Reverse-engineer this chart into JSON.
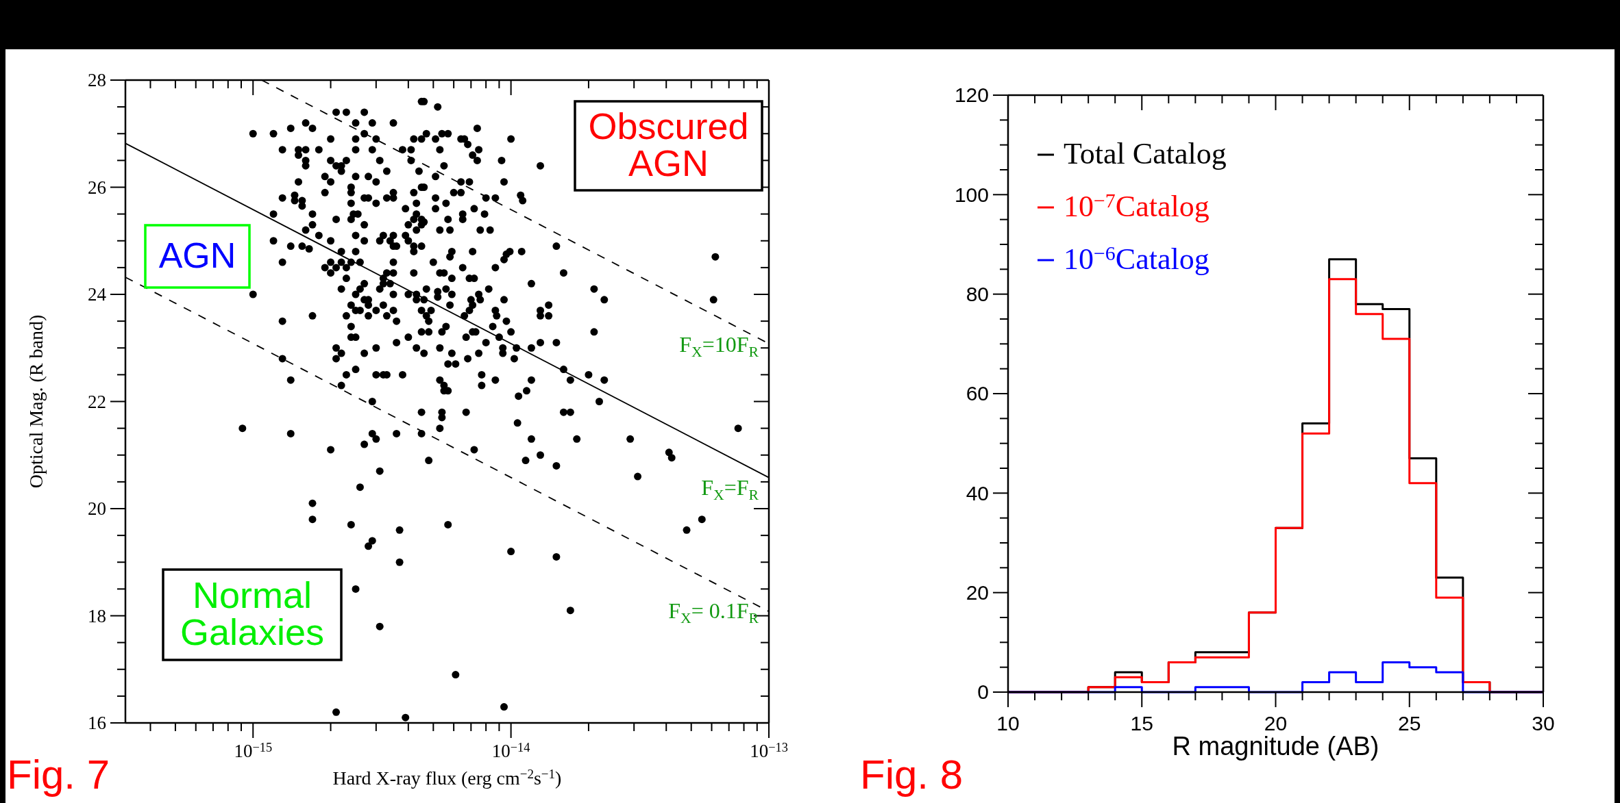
{
  "chart_data": [
    {
      "type": "scatter",
      "xlabel": "Hard X-ray flux (erg cm$^{−2}$s$^{−1}$)",
      "ylabel": "Optical Mag. (R band)",
      "log": "x",
      "xlim": [
        3.2e-16,
        1e-13
      ],
      "ylim": [
        16,
        28
      ],
      "xticks": [
        {
          "value": 4e-16,
          "label": null
        },
        {
          "value": 5e-16,
          "label": null
        },
        {
          "value": 6e-16,
          "label": null
        },
        {
          "value": 7e-16,
          "label": null
        },
        {
          "value": 8e-16,
          "label": null
        },
        {
          "value": 9e-16,
          "label": null
        },
        {
          "value": 1e-15,
          "label": "10$^{−15}$"
        },
        {
          "value": 2e-15,
          "label": null
        },
        {
          "value": 3e-15,
          "label": null
        },
        {
          "value": 4e-15,
          "label": null
        },
        {
          "value": 5e-15,
          "label": null
        },
        {
          "value": 6e-15,
          "label": null
        },
        {
          "value": 7e-15,
          "label": null
        },
        {
          "value": 8e-15,
          "label": null
        },
        {
          "value": 9e-15,
          "label": null
        },
        {
          "value": 1e-14,
          "label": "10$^{−14}$"
        },
        {
          "value": 2e-14,
          "label": null
        },
        {
          "value": 3e-14,
          "label": null
        },
        {
          "value": 4e-14,
          "label": null
        },
        {
          "value": 5e-14,
          "label": null
        },
        {
          "value": 6e-14,
          "label": null
        },
        {
          "value": 7e-14,
          "label": null
        },
        {
          "value": 8e-14,
          "label": null
        },
        {
          "value": 9e-14,
          "label": null
        },
        {
          "value": 1e-13,
          "label": "10$^{−13}$"
        }
      ],
      "yticks": [
        16,
        {
          "value": 16.5,
          "label": null
        },
        {
          "value": 17,
          "label": null
        },
        {
          "value": 17.5,
          "label": null
        },
        18,
        {
          "value": 18.5,
          "label": null
        },
        {
          "value": 19,
          "label": null
        },
        {
          "value": 19.5,
          "label": null
        },
        20,
        {
          "value": 20.5,
          "label": null
        },
        {
          "value": 21,
          "label": null
        },
        {
          "value": 21.5,
          "label": null
        },
        22,
        {
          "value": 22.5,
          "label": null
        },
        {
          "value": 23,
          "label": null
        },
        {
          "value": 23.5,
          "label": null
        },
        24,
        {
          "value": 24.5,
          "label": null
        },
        {
          "value": 25,
          "label": null
        },
        {
          "value": 25.5,
          "label": null
        },
        26,
        {
          "value": 26.5,
          "label": null
        },
        {
          "value": 27,
          "label": null
        },
        {
          "value": 27.5,
          "label": null
        },
        28
      ],
      "series": [
        {
          "type": "scatter",
          "color": "#000000",
          "marker": "circle",
          "x": [
            4.5e-15,
            4.6e-15,
            5.2e-15,
            2.1e-15,
            2.3e-15,
            2.7e-15,
            2.9e-15,
            2.5e-15,
            3.5e-15,
            1.6e-15,
            1.7e-15,
            1.4e-15,
            1e-15,
            1.2e-15,
            2.7e-15,
            3e-15,
            2.5e-15,
            2e-15,
            4.2e-15,
            4.5e-15,
            4.7e-15,
            5.1e-15,
            5.4e-15,
            5.7e-15,
            1.3e-15,
            1.5e-15,
            1.6e-15,
            1.5e-15,
            1.8e-15,
            2.5e-15,
            2.9e-15,
            3.8e-15,
            4.1e-15,
            5.3e-15,
            2e-15,
            2.3e-15,
            1.6e-15,
            1.6e-15,
            2.1e-15,
            2.2e-15,
            2.2e-15,
            3.1e-15,
            3.3e-15,
            4.1e-15,
            4.4e-15,
            5.5e-15,
            5.1e-15,
            1.9e-15,
            2e-15,
            2.5e-15,
            2.8e-15,
            3e-15,
            1.5e-15,
            2.4e-15,
            2.4e-15,
            4.5e-15,
            4.6e-15,
            4.2e-15,
            3.5e-15,
            3.5e-15,
            6e-15,
            1.3e-15,
            1.45e-15,
            1.45e-15,
            1.55e-15,
            1.55e-15,
            1.9e-15,
            2.4e-15,
            2.7e-15,
            2.8e-15,
            3e-15,
            3.3e-15,
            4.3e-15,
            5.1e-15,
            5.6e-15,
            3.9e-15,
            5.1e-15,
            1.2e-15,
            1.7e-15,
            2.1e-15,
            2.4e-15,
            2.45e-15,
            2.55e-15,
            4.3e-15,
            4.5e-15,
            4.6e-15,
            4e-15,
            4.2e-15,
            4.5e-15,
            4.3e-15,
            5.7e-15,
            1.6e-15,
            1.7e-15,
            1.8e-15,
            2.5e-15,
            2.7e-15,
            3.2e-15,
            3.5e-15,
            3.9e-15,
            4e-15,
            5.3e-15,
            5.8e-15,
            1.2e-15,
            1.4e-15,
            1.55e-15,
            1.65e-15,
            2e-15,
            2.2e-15,
            2.7e-15,
            3.1e-15,
            3.4e-15,
            3.5e-15,
            3.6e-15,
            4.2e-15,
            4.2e-15,
            4.5e-15,
            5.9e-15,
            5.8e-15,
            1.3e-15,
            1.9e-15,
            2e-15,
            2.1e-15,
            2.2e-15,
            2.3e-15,
            2.4e-15,
            2.6e-15,
            2.5e-15,
            3.5e-15,
            5e-15,
            4.2e-15,
            2e-15,
            2.3e-15,
            2.2e-15,
            2.5e-15,
            2.6e-15,
            2.7e-15,
            3.2e-15,
            3.3e-15,
            3.5e-15,
            3.2e-15,
            3.4e-15,
            3.1e-15,
            3.5e-15,
            4e-15,
            4.3e-15,
            4.3e-15,
            4.6e-15,
            4.7e-15,
            5.2e-15,
            5.2e-15,
            5.3e-15,
            5.5e-15,
            5.9e-15,
            5.6e-15,
            5.9e-15,
            5.8e-15,
            1e-15,
            1.7e-15,
            1.3e-15,
            2.3e-15,
            2.4e-15,
            2.5e-15,
            2.6e-15,
            2.7e-15,
            2.8e-15,
            2.8e-15,
            3e-15,
            2.8e-15,
            3.2e-15,
            3.3e-15,
            3.5e-15,
            3.6e-15,
            4.5e-15,
            4.7e-15,
            4.9e-15,
            4.8e-15,
            4.8e-15,
            4.5e-15,
            5.6e-15,
            5.4e-15,
            2.4e-15,
            2.5e-15,
            2.4e-15,
            4e-15,
            3.6e-15,
            4.3e-15,
            2.1e-15,
            2.2e-15,
            2.1e-15,
            2.7e-15,
            3e-15,
            5.3e-15,
            5.9e-15,
            4.6e-15,
            5.7e-15,
            6.1e-15,
            1.3e-15,
            1.4e-15,
            2.5e-15,
            2.3e-15,
            2.2e-15,
            3e-15,
            3.2e-15,
            3.3e-15,
            3.8e-15,
            5.3e-15,
            5.5e-15,
            5.5e-15,
            5.7e-15,
            2.9e-15,
            4.5e-15,
            5.4e-15,
            5.4e-15,
            4.5e-15,
            5.3e-15,
            2.9e-15,
            3e-15,
            2.7e-15,
            3.6e-15,
            9.1e-16,
            1.4e-15,
            2e-15,
            4.8e-15,
            3.1e-15,
            2.6e-15,
            1.7e-15,
            1.7e-15,
            2.4e-15,
            3.7e-15,
            2.9e-15,
            2.8e-15,
            3.7e-15,
            5.7e-15,
            2.5e-15,
            3.1e-15,
            6.1e-15,
            2.1e-15,
            3.9e-15,
            7.4e-15,
            6.4e-15,
            6.6e-15,
            6.8e-15,
            1e-14,
            7.1e-15,
            7.5e-15,
            7.4e-15,
            9.2e-15,
            1.3e-14,
            6.4e-15,
            6.9e-15,
            9.4e-15,
            6.4e-15,
            8e-15,
            8.7e-15,
            1.09e-14,
            1.11e-14,
            7.2e-15,
            6.5e-15,
            6.5e-15,
            7.9e-15,
            7.6e-15,
            8.3e-15,
            1.5e-14,
            7.1e-15,
            1.1e-14,
            9.4e-15,
            9.9e-15,
            9.6e-15,
            6.5e-15,
            8.7e-15,
            1.6e-14,
            6.2e-14,
            6.9e-15,
            7.2e-15,
            1.2e-14,
            2.1e-14,
            2.3e-14,
            6.1e-14,
            7.5e-15,
            7.6e-15,
            8.2e-15,
            9.4e-15,
            7e-15,
            7.1e-15,
            6.9e-15,
            8.7e-15,
            8.8e-15,
            6.6e-15,
            9.6e-15,
            1.3e-14,
            1.4e-14,
            1.3e-14,
            1.4e-14,
            8.5e-15,
            6.7e-15,
            7.1e-15,
            7.3e-15,
            9e-15,
            1e-14,
            8e-15,
            2.1e-14,
            6.8e-15,
            7.5e-15,
            9.3e-15,
            9.3e-15,
            1.03e-14,
            1.05e-14,
            1.2e-14,
            1.3e-14,
            1.5e-14,
            7.7e-15,
            7.7e-15,
            8.7e-15,
            1.2e-14,
            1.15e-14,
            1.07e-14,
            1.6e-14,
            1.7e-14,
            2e-14,
            2.3e-14,
            2.2e-14,
            6.7e-15,
            1.06e-14,
            1.2e-14,
            1.14e-14,
            1.3e-14,
            7.2e-15,
            1.5e-14,
            1.6e-14,
            1.7e-14,
            1.8e-14,
            2.9e-14,
            3.1e-14,
            4.1e-14,
            4.2e-14,
            7.6e-14,
            5.5e-14,
            4.8e-14,
            1e-14,
            1.5e-14,
            1.7e-14,
            9.4e-15
          ],
          "values": [
            27.6,
            27.6,
            27.5,
            27.4,
            27.4,
            27.4,
            27.2,
            27.2,
            27.2,
            27.2,
            27.1,
            27.1,
            27.0,
            27.0,
            27.0,
            26.9,
            26.9,
            26.9,
            26.9,
            26.9,
            27.0,
            26.9,
            27.0,
            27.0,
            26.7,
            26.7,
            26.7,
            26.6,
            26.7,
            26.7,
            26.7,
            26.7,
            26.7,
            26.7,
            26.5,
            26.5,
            26.5,
            26.4,
            26.4,
            26.4,
            26.3,
            26.5,
            26.3,
            26.5,
            26.3,
            26.4,
            26.2,
            26.2,
            26.1,
            26.2,
            26.2,
            26.1,
            26.1,
            26.0,
            25.9,
            26.0,
            26.0,
            25.9,
            25.9,
            25.8,
            25.9,
            25.8,
            25.85,
            25.75,
            25.75,
            25.65,
            25.9,
            25.7,
            25.8,
            25.8,
            25.7,
            25.8,
            25.7,
            25.8,
            25.7,
            25.6,
            25.6,
            25.5,
            25.5,
            25.4,
            25.4,
            25.5,
            25.5,
            25.5,
            25.4,
            25.35,
            25.3,
            25.4,
            25.3,
            25.2,
            25.4,
            25.2,
            25.3,
            25.1,
            25.1,
            25.3,
            25.1,
            25.1,
            25.1,
            25.0,
            25.2,
            25.2,
            25.0,
            24.9,
            24.9,
            24.85,
            25.0,
            24.8,
            25.0,
            25.0,
            25.0,
            24.9,
            24.9,
            24.9,
            24.8,
            24.9,
            24.8,
            24.7,
            24.6,
            24.5,
            24.6,
            24.5,
            24.6,
            24.5,
            24.6,
            24.6,
            24.8,
            24.6,
            24.6,
            24.4,
            24.4,
            24.3,
            24.1,
            24.0,
            24.1,
            24.2,
            24.3,
            24.4,
            24.4,
            24.2,
            24.2,
            24.1,
            24.0,
            24.0,
            24.0,
            23.9,
            23.9,
            24.1,
            24.05,
            23.95,
            24.4,
            24.4,
            24.3,
            24.1,
            24.0,
            23.8,
            24.0,
            23.6,
            23.5,
            23.6,
            23.8,
            23.7,
            23.7,
            23.9,
            23.9,
            23.8,
            23.7,
            23.6,
            23.8,
            23.6,
            23.7,
            23.5,
            23.7,
            23.6,
            23.7,
            23.5,
            23.3,
            23.3,
            23.4,
            23.3,
            23.4,
            23.2,
            23.2,
            23.2,
            23.1,
            23.0,
            23.0,
            22.9,
            22.8,
            22.9,
            23.0,
            23.0,
            22.9,
            22.9,
            22.7,
            22.7,
            22.8,
            22.4,
            22.6,
            22.5,
            22.3,
            22.5,
            22.5,
            22.5,
            22.5,
            22.4,
            22.3,
            22.2,
            22.2,
            22.0,
            21.8,
            21.8,
            21.7,
            21.4,
            21.5,
            21.4,
            21.3,
            21.2,
            21.4,
            21.5,
            21.4,
            21.1,
            20.9,
            20.7,
            20.4,
            20.1,
            19.8,
            19.7,
            19.6,
            19.4,
            19.3,
            19.0,
            19.7,
            18.5,
            17.8,
            16.9,
            16.2,
            16.1,
            27.1,
            26.9,
            26.9,
            26.8,
            26.9,
            26.6,
            26.7,
            26.5,
            26.5,
            26.4,
            26.1,
            26.1,
            26.1,
            25.9,
            25.8,
            25.8,
            25.85,
            25.75,
            25.6,
            25.5,
            25.4,
            25.5,
            25.2,
            25.2,
            24.9,
            24.8,
            24.8,
            24.65,
            24.8,
            24.75,
            24.5,
            24.5,
            24.4,
            24.7,
            24.3,
            24.3,
            24.2,
            24.1,
            23.9,
            23.9,
            24.0,
            23.9,
            24.1,
            23.9,
            23.9,
            23.8,
            23.7,
            23.7,
            23.6,
            23.6,
            23.5,
            23.7,
            23.8,
            23.6,
            23.6,
            23.4,
            23.2,
            23.3,
            23.3,
            23.2,
            23.3,
            23.1,
            23.3,
            22.8,
            22.9,
            23.0,
            22.9,
            22.8,
            23.0,
            23.0,
            23.1,
            23.1,
            22.5,
            22.3,
            22.4,
            22.4,
            22.2,
            22.1,
            22.6,
            22.4,
            22.5,
            22.4,
            22.0,
            21.8,
            21.6,
            21.3,
            20.9,
            21.0,
            21.1,
            20.8,
            21.8,
            21.8,
            21.3,
            21.3,
            20.6,
            21.05,
            20.95,
            21.5,
            19.8,
            19.6,
            19.2,
            19.1,
            18.1,
            16.3
          ]
        },
        {
          "type": "line",
          "color": "#000000",
          "marker": "none",
          "line_style": "solid",
          "x": [
            3.2e-16,
            1e-13
          ],
          "values": [
            26.82,
            20.58
          ]
        },
        {
          "type": "line",
          "color": "#000000",
          "marker": "none",
          "line_style": "dashed",
          "x": [
            1.08e-15,
            1e-13
          ],
          "values": [
            28,
            23.08
          ]
        },
        {
          "type": "line",
          "color": "#000000",
          "marker": "none",
          "line_style": "dashed",
          "x": [
            3.2e-16,
            1e-13
          ],
          "values": [
            24.32,
            18.08
          ]
        }
      ],
      "annotations": [
        "AGN",
        "Obscured AGN",
        "Normal Galaxies",
        "F$_{X}$=10F$_{R}$",
        "F$_{X}$=F$_{R}$",
        "F$_{X}$= 0.1F$_{R}$",
        "Fig. 7"
      ]
    },
    {
      "type": "histogram",
      "xlabel": "R magnitude (AB)",
      "legend": "top left",
      "xlim": [
        10,
        30
      ],
      "ylim": [
        0,
        120
      ],
      "xticks": [
        10,
        {
          "value": 11,
          "label": null
        },
        {
          "value": 12,
          "label": null
        },
        {
          "value": 13,
          "label": null
        },
        {
          "value": 14,
          "label": null
        },
        15,
        {
          "value": 16,
          "label": null
        },
        {
          "value": 17,
          "label": null
        },
        {
          "value": 18,
          "label": null
        },
        {
          "value": 19,
          "label": null
        },
        20,
        {
          "value": 21,
          "label": null
        },
        {
          "value": 22,
          "label": null
        },
        {
          "value": 23,
          "label": null
        },
        {
          "value": 24,
          "label": null
        },
        25,
        {
          "value": 26,
          "label": null
        },
        {
          "value": 27,
          "label": null
        },
        {
          "value": 28,
          "label": null
        },
        {
          "value": 29,
          "label": null
        },
        30
      ],
      "yticks": [
        0,
        {
          "value": 5,
          "label": null
        },
        {
          "value": 10,
          "label": null
        },
        {
          "value": 15,
          "label": null
        },
        20,
        {
          "value": 25,
          "label": null
        },
        {
          "value": 30,
          "label": null
        },
        {
          "value": 35,
          "label": null
        },
        40,
        {
          "value": 45,
          "label": null
        },
        {
          "value": 50,
          "label": null
        },
        {
          "value": 55,
          "label": null
        },
        60,
        {
          "value": 65,
          "label": null
        },
        {
          "value": 70,
          "label": null
        },
        {
          "value": 75,
          "label": null
        },
        80,
        {
          "value": 85,
          "label": null
        },
        {
          "value": 90,
          "label": null
        },
        {
          "value": 95,
          "label": null
        },
        100,
        {
          "value": 105,
          "label": null
        },
        {
          "value": 110,
          "label": null
        },
        {
          "value": 115,
          "label": null
        },
        120
      ],
      "bins": [
        10,
        11,
        12,
        13,
        14,
        15,
        16,
        17,
        18,
        19,
        20,
        21,
        22,
        23,
        24,
        25,
        26,
        27,
        28,
        29,
        30
      ],
      "series": [
        {
          "name": "Total Catalog",
          "color": "#000000",
          "values": [
            0,
            0,
            0,
            1,
            4,
            2,
            6,
            8,
            8,
            16,
            33,
            54,
            87,
            78,
            77,
            47,
            23,
            2,
            0,
            0
          ]
        },
        {
          "name": "10$^{−7}$Catalog",
          "color": "#ff0000",
          "values": [
            0,
            0,
            0,
            1,
            3,
            2,
            6,
            7,
            7,
            16,
            33,
            52,
            83,
            76,
            71,
            42,
            19,
            2,
            0,
            0
          ]
        },
        {
          "name": "10$^{−6}$Catalog",
          "color": "#0000ff",
          "values": [
            0,
            0,
            0,
            0,
            1,
            0,
            0,
            1,
            1,
            0,
            0,
            2,
            4,
            2,
            6,
            5,
            4,
            0,
            0,
            0
          ]
        }
      ],
      "annotations": [
        "Fig. 8"
      ]
    }
  ]
}
